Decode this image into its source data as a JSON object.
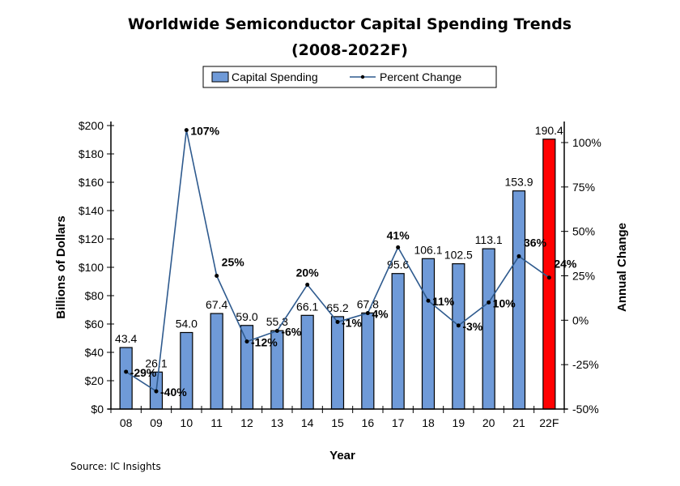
{
  "chart_data": {
    "type": "bar",
    "title": "Worldwide Semiconductor Capital Spending Trends",
    "subtitle": "(2008-2022F)",
    "xlabel": "Year",
    "ylabel": "Billions of Dollars",
    "y2label": "Annual Change",
    "categories": [
      "08",
      "09",
      "10",
      "11",
      "12",
      "13",
      "14",
      "15",
      "16",
      "17",
      "18",
      "19",
      "20",
      "21",
      "22F"
    ],
    "series": [
      {
        "name": "Capital Spending",
        "type": "bar",
        "axis": "left",
        "values": [
          43.4,
          26.1,
          54.0,
          67.4,
          59.0,
          55.3,
          66.1,
          65.2,
          67.8,
          95.6,
          106.1,
          102.5,
          113.1,
          153.9,
          190.4
        ],
        "labels": [
          "43.4",
          "26.1",
          "54.0",
          "67.4",
          "59.0",
          "55.3",
          "66.1",
          "65.2",
          "67.8",
          "95.6",
          "106.1",
          "102.5",
          "113.1",
          "153.9",
          "190.4"
        ],
        "color": "#6f9ad8",
        "highlight_color": "#ff0000",
        "highlight_index": 14
      },
      {
        "name": "Percent Change",
        "type": "line",
        "axis": "right",
        "values": [
          -29,
          -40,
          107,
          25,
          -12,
          -6,
          20,
          -1,
          4,
          41,
          11,
          -3,
          10,
          36,
          24
        ],
        "labels": [
          "-29%",
          "-40%",
          "107%",
          "25%",
          "-12%",
          "-6%",
          "20%",
          "-1%",
          "4%",
          "41%",
          "11%",
          "-3%",
          "10%",
          "36%",
          "24%"
        ],
        "label_pos": [
          "right",
          "right",
          "right",
          "above-right",
          "right",
          "right",
          "above",
          "right",
          "right",
          "above",
          "right",
          "right",
          "right",
          "above-right",
          "above-right"
        ],
        "color": "#2e5a8e"
      }
    ],
    "ylim": [
      0,
      200
    ],
    "yticks": [
      "$0",
      "$20",
      "$40",
      "$60",
      "$80",
      "$100",
      "$120",
      "$140",
      "$160",
      "$180",
      "$200"
    ],
    "y2lim": [
      -50,
      100
    ],
    "y2ticks": [
      "-50%",
      "-25%",
      "0%",
      "25%",
      "50%",
      "75%",
      "100%"
    ],
    "grid": false,
    "legend": "top-center"
  },
  "source": "Source: IC Insights"
}
